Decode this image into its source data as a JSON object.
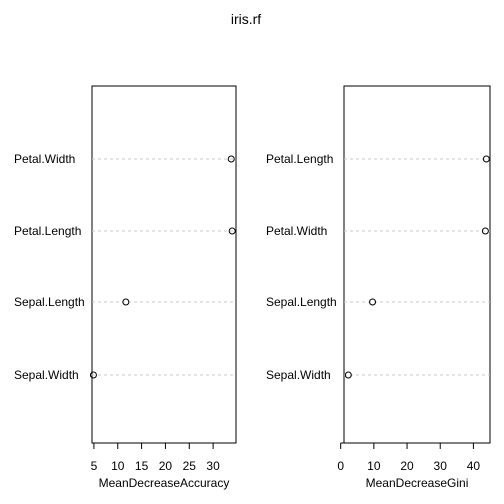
{
  "chart_title": "iris.rf",
  "chart_data": [
    {
      "type": "scatter",
      "xlabel": "MeanDecreaseAccuracy",
      "ylabel": "",
      "categories": [
        "Petal.Width",
        "Petal.Length",
        "Sepal.Length",
        "Sepal.Width"
      ],
      "values": [
        33.8,
        34.0,
        11.7,
        4.9
      ],
      "xlim": [
        4.6,
        34.8
      ],
      "xticks": [
        5,
        10,
        15,
        20,
        25,
        30
      ],
      "grid": "dotted horizontal lines per variable"
    },
    {
      "type": "scatter",
      "xlabel": "MeanDecreaseGini",
      "ylabel": "",
      "categories": [
        "Petal.Length",
        "Petal.Width",
        "Sepal.Length",
        "Sepal.Width"
      ],
      "values": [
        43.9,
        43.6,
        9.6,
        2.3
      ],
      "xlim": [
        1.0,
        45.0
      ],
      "xticks": [
        0,
        10,
        20,
        30,
        40
      ],
      "grid": "dotted horizontal lines per variable"
    }
  ]
}
